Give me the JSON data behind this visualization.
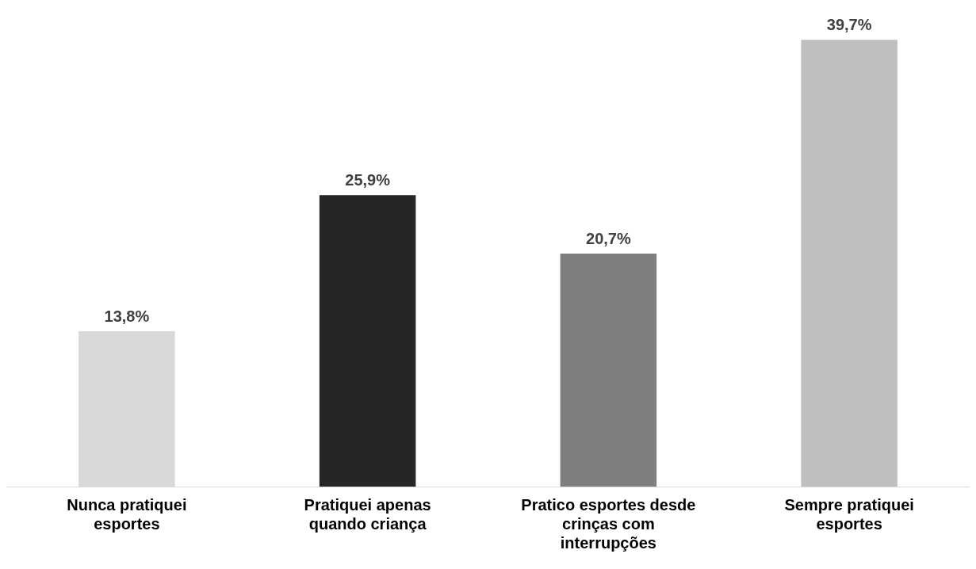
{
  "chart_data": {
    "type": "bar",
    "categories": [
      "Nunca pratiquei esportes",
      "Pratiquei apenas quando criança",
      "Pratico esportes desde crinças com interrupções",
      "Sempre pratiquei esportes"
    ],
    "values": [
      13.8,
      25.9,
      20.7,
      39.7
    ],
    "colors": [
      "#d9d9d9",
      "#262626",
      "#7f7f7f",
      "#bfbfbf"
    ],
    "value_labels": [
      "13,8%",
      "25,9%",
      "20,7%",
      "39,7%"
    ],
    "grid": false,
    "legend": false
  }
}
